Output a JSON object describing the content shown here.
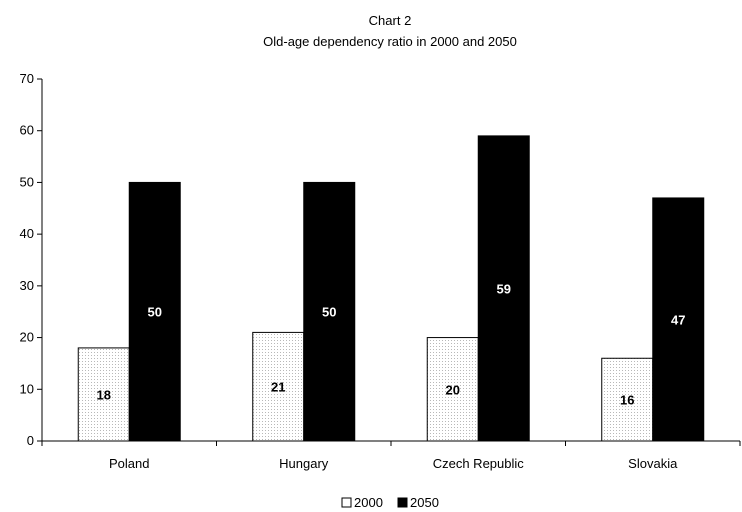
{
  "chart_data": {
    "type": "bar",
    "title": "Chart 2",
    "subtitle": "Old-age dependency ratio in 2000 and 2050",
    "categories": [
      "Poland",
      "Hungary",
      "Czech Republic",
      "Slovakia"
    ],
    "series": [
      {
        "name": "2000",
        "values": [
          18,
          21,
          20,
          16
        ],
        "color": "#ffffff"
      },
      {
        "name": "2050",
        "values": [
          50,
          50,
          59,
          47
        ],
        "color": "#000000"
      }
    ],
    "ylim": [
      0,
      70
    ],
    "yticks": [
      0,
      10,
      20,
      30,
      40,
      50,
      60,
      70
    ],
    "xlabel": "",
    "ylabel": "",
    "grid": false,
    "legend_position": "bottom"
  }
}
